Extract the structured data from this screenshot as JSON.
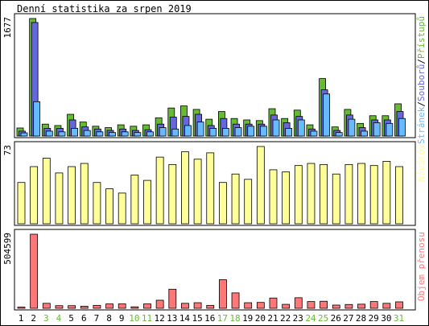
{
  "title": "Denní statistika za srpen 2019",
  "colors": {
    "pristupu": "#66bb33",
    "souboru": "#6666dd",
    "stranek": "#66bbff",
    "navstev": "#ffff99",
    "objem": "#ff7777",
    "weekend_day": "#66bb33",
    "weekday": "#000000"
  },
  "chart_data": [
    {
      "type": "bar",
      "panel": "hits",
      "max_label": "1677",
      "ylim": [
        0,
        1677
      ],
      "legend": [
        "Stránek",
        "Souborů",
        "Přístupů"
      ],
      "legend_colors": [
        "#66bbff",
        "#6666dd",
        "#66bb33"
      ],
      "categories": [
        "1",
        "2",
        "3",
        "4",
        "5",
        "6",
        "7",
        "8",
        "9",
        "10",
        "11",
        "12",
        "13",
        "14",
        "15",
        "16",
        "17",
        "18",
        "19",
        "20",
        "21",
        "22",
        "23",
        "24",
        "25",
        "26",
        "27",
        "28",
        "29",
        "30",
        "31"
      ],
      "series": [
        {
          "name": "Přístupů",
          "color": "#66bb33",
          "values": [
            115,
            1677,
            170,
            150,
            310,
            200,
            140,
            120,
            160,
            140,
            160,
            260,
            400,
            430,
            380,
            240,
            350,
            250,
            230,
            220,
            390,
            250,
            370,
            160,
            820,
            130,
            380,
            180,
            290,
            290,
            460
          ]
        },
        {
          "name": "Souborů",
          "color": "#6666dd",
          "values": [
            70,
            1620,
            110,
            110,
            230,
            130,
            100,
            80,
            100,
            80,
            90,
            170,
            270,
            280,
            310,
            150,
            250,
            170,
            170,
            170,
            300,
            190,
            280,
            100,
            660,
            80,
            300,
            120,
            230,
            230,
            350
          ]
        },
        {
          "name": "Stránek",
          "color": "#66bbff",
          "values": [
            45,
            490,
            70,
            60,
            110,
            80,
            60,
            50,
            60,
            50,
            60,
            120,
            100,
            150,
            200,
            110,
            110,
            120,
            140,
            140,
            230,
            110,
            230,
            70,
            600,
            50,
            240,
            70,
            190,
            180,
            250
          ]
        }
      ]
    },
    {
      "type": "bar",
      "panel": "visits",
      "max_label": "73",
      "ylim": [
        0,
        73
      ],
      "legend": [
        "Návštěv"
      ],
      "legend_colors": [
        "#ffff99"
      ],
      "categories": [
        "1",
        "2",
        "3",
        "4",
        "5",
        "6",
        "7",
        "8",
        "9",
        "10",
        "11",
        "12",
        "13",
        "14",
        "15",
        "16",
        "17",
        "18",
        "19",
        "20",
        "21",
        "22",
        "23",
        "24",
        "25",
        "26",
        "27",
        "28",
        "29",
        "30",
        "31"
      ],
      "series": [
        {
          "name": "Návštěv",
          "color": "#ffff99",
          "values": [
            39,
            54,
            62,
            48,
            54,
            57,
            39,
            33,
            29,
            46,
            41,
            63,
            56,
            68,
            61,
            67,
            39,
            47,
            42,
            73,
            51,
            49,
            55,
            57,
            56,
            47,
            56,
            57,
            55,
            59,
            54
          ]
        }
      ]
    },
    {
      "type": "bar",
      "panel": "volume",
      "max_label": "504599",
      "ylim": [
        0,
        504599
      ],
      "legend": [
        "Objem přenosu"
      ],
      "legend_colors": [
        "#ff7777"
      ],
      "categories": [
        "1",
        "2",
        "3",
        "4",
        "5",
        "6",
        "7",
        "8",
        "9",
        "10",
        "11",
        "12",
        "13",
        "14",
        "15",
        "16",
        "17",
        "18",
        "19",
        "20",
        "21",
        "22",
        "23",
        "24",
        "25",
        "26",
        "27",
        "28",
        "29",
        "30",
        "31"
      ],
      "series": [
        {
          "name": "Objem přenosu",
          "color": "#ff7777",
          "values": [
            8000,
            504599,
            34000,
            18000,
            18000,
            14000,
            20000,
            30000,
            30000,
            10000,
            30000,
            55000,
            130000,
            34000,
            38000,
            20000,
            195000,
            105000,
            38000,
            40000,
            70000,
            27000,
            72000,
            46000,
            48000,
            22000,
            26000,
            28000,
            46000,
            34000,
            44000
          ]
        }
      ]
    }
  ],
  "x_axis": {
    "labels": [
      "1",
      "2",
      "3",
      "4",
      "5",
      "6",
      "7",
      "8",
      "9",
      "10",
      "11",
      "12",
      "13",
      "14",
      "15",
      "16",
      "17",
      "18",
      "19",
      "20",
      "21",
      "22",
      "23",
      "24",
      "25",
      "26",
      "27",
      "28",
      "29",
      "30",
      "31"
    ],
    "weekend": [
      false,
      false,
      true,
      true,
      false,
      false,
      false,
      false,
      false,
      true,
      true,
      false,
      false,
      false,
      false,
      false,
      true,
      true,
      false,
      false,
      false,
      false,
      false,
      true,
      true,
      false,
      false,
      false,
      false,
      false,
      true
    ]
  }
}
